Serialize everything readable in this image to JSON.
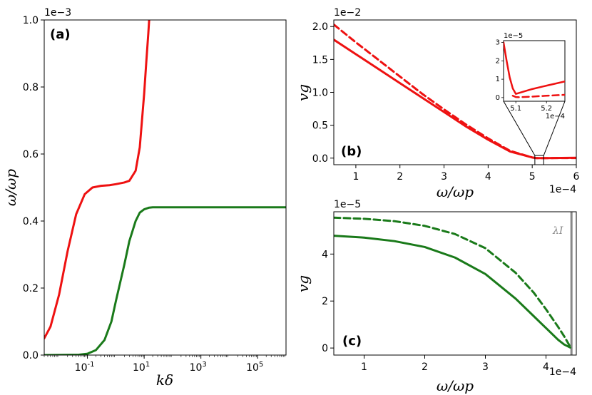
{
  "chart_data": [
    {
      "panel": "(a)",
      "type": "line",
      "xscale": "log",
      "xlim": [
        0.003,
        1000000
      ],
      "ylim": [
        0,
        1.0
      ],
      "y_multiplier": "1e−3",
      "xlabel": "kδ",
      "ylabel": "ω/ωp",
      "xticks": [
        {
          "v": 0.1,
          "b": "10",
          "e": "-1"
        },
        {
          "v": 10,
          "b": "10",
          "e": "1"
        },
        {
          "v": 1000,
          "b": "10",
          "e": "3"
        },
        {
          "v": 100000,
          "b": "10",
          "e": "5"
        }
      ],
      "yticks": [
        "0.0",
        "0.2",
        "0.4",
        "0.6",
        "0.8",
        "1.0"
      ],
      "series": [
        {
          "color": "#ee1111",
          "style": "solid",
          "x": [
            0.003,
            0.005,
            0.01,
            0.02,
            0.04,
            0.08,
            0.15,
            0.3,
            0.6,
            1,
            2,
            3,
            5,
            7,
            10,
            12,
            14,
            15
          ],
          "y": [
            0.05,
            0.085,
            0.18,
            0.31,
            0.42,
            0.48,
            0.5,
            0.505,
            0.507,
            0.51,
            0.515,
            0.52,
            0.55,
            0.62,
            0.78,
            0.88,
            0.96,
            1.0
          ]
        },
        {
          "color": "#1a7a1a",
          "style": "solid",
          "x": [
            0.003,
            0.05,
            0.1,
            0.2,
            0.4,
            0.7,
            1,
            2,
            3,
            5,
            7,
            10,
            15,
            20,
            40,
            100,
            1000000
          ],
          "y": [
            0,
            0.001,
            0.004,
            0.015,
            0.045,
            0.1,
            0.16,
            0.27,
            0.34,
            0.4,
            0.425,
            0.435,
            0.44,
            0.441,
            0.441,
            0.441,
            0.441
          ]
        }
      ]
    },
    {
      "panel": "(b)",
      "type": "line",
      "xlim": [
        0.5,
        6
      ],
      "ylim": [
        -0.1,
        2.1
      ],
      "x_multiplier": "1e−4",
      "y_multiplier": "1e−2",
      "xlabel": "ω/ωp",
      "ylabel": "vg",
      "xticks": [
        "1",
        "2",
        "3",
        "4",
        "5",
        "6"
      ],
      "yticks": [
        "0.0",
        "0.5",
        "1.0",
        "1.5",
        "2.0"
      ],
      "series": [
        {
          "color": "#ee1111",
          "style": "solid",
          "x": [
            0.5,
            1,
            1.5,
            2,
            2.5,
            3,
            3.5,
            4,
            4.5,
            5.0,
            5.1,
            5.5,
            6
          ],
          "y": [
            1.8,
            1.58,
            1.36,
            1.14,
            0.92,
            0.7,
            0.48,
            0.28,
            0.1,
            0.01,
            0.0,
            0.002,
            0.005
          ]
        },
        {
          "color": "#ee1111",
          "style": "dashed",
          "x": [
            0.5,
            1,
            1.5,
            2,
            2.5,
            3,
            3.5,
            4,
            4.5,
            5.0,
            5.1,
            5.5,
            6
          ],
          "y": [
            2.03,
            1.76,
            1.5,
            1.24,
            0.98,
            0.74,
            0.51,
            0.3,
            0.11,
            0.01,
            0.0,
            0.001,
            0.002
          ]
        }
      ],
      "inset": {
        "xlim": [
          5.06,
          5.26
        ],
        "ylim": [
          -0.2,
          3.1
        ],
        "x_multiplier": "1e−4",
        "y_multiplier": "1e−5",
        "xticks": [
          "5.1",
          "5.2"
        ],
        "yticks": [
          "0",
          "1",
          "2",
          "3"
        ],
        "series": [
          {
            "color": "#ee1111",
            "style": "solid",
            "x": [
              5.06,
              5.07,
              5.08,
              5.09,
              5.1,
              5.11,
              5.15,
              5.2,
              5.26
            ],
            "y": [
              3.0,
              2.0,
              1.1,
              0.5,
              0.2,
              0.25,
              0.45,
              0.65,
              0.88
            ]
          },
          {
            "color": "#ee1111",
            "style": "dashed",
            "x": [
              5.09,
              5.1,
              5.11,
              5.15,
              5.2,
              5.26
            ],
            "y": [
              0.1,
              0.03,
              0.02,
              0.05,
              0.1,
              0.15
            ]
          }
        ]
      }
    },
    {
      "panel": "(c)",
      "type": "line",
      "xlim": [
        0.5,
        4.5
      ],
      "ylim": [
        -0.3,
        5.8
      ],
      "x_multiplier": "1e−4",
      "y_multiplier": "1e−5",
      "xlabel": "ω/ωp",
      "ylabel": "vg",
      "xticks": [
        "1",
        "2",
        "3",
        "4"
      ],
      "yticks": [
        "0",
        "2",
        "4"
      ],
      "annotation": "λI",
      "vline_x": 4.42,
      "series": [
        {
          "color": "#1a7a1a",
          "style": "solid",
          "x": [
            0.5,
            1,
            1.5,
            2,
            2.5,
            3,
            3.5,
            3.8,
            4.0,
            4.2,
            4.3,
            4.4
          ],
          "y": [
            4.78,
            4.7,
            4.55,
            4.3,
            3.85,
            3.15,
            2.1,
            1.35,
            0.85,
            0.35,
            0.15,
            0.02
          ]
        },
        {
          "color": "#1a7a1a",
          "style": "dashed",
          "x": [
            0.5,
            1,
            1.5,
            2,
            2.5,
            3,
            3.5,
            3.8,
            4.0,
            4.2,
            4.3,
            4.4
          ],
          "y": [
            5.55,
            5.5,
            5.4,
            5.2,
            4.85,
            4.25,
            3.2,
            2.35,
            1.65,
            0.9,
            0.5,
            0.05
          ]
        }
      ]
    }
  ]
}
